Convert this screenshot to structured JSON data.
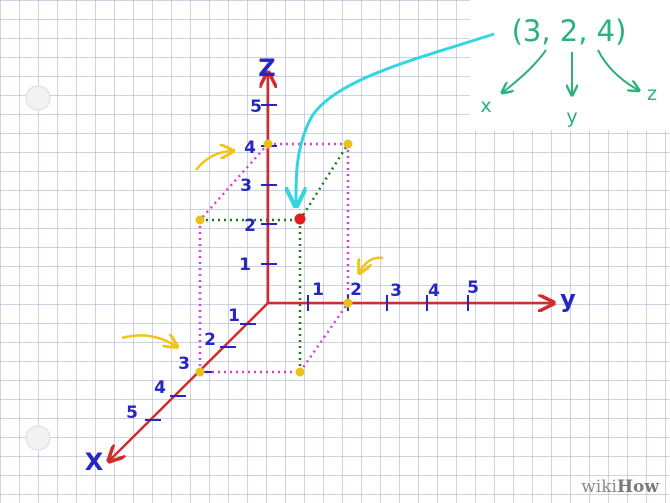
{
  "diagram": {
    "axes": {
      "z": "Z",
      "y": "y",
      "x": "X"
    },
    "z_ticks": [
      "1",
      "2",
      "3",
      "4",
      "5"
    ],
    "y_ticks": [
      "1",
      "2",
      "3",
      "4",
      "5"
    ],
    "x_ticks": [
      "1",
      "2",
      "3",
      "4",
      "5"
    ],
    "callout": {
      "coordinate": "(3, 2, 4)",
      "branch_x": "x",
      "branch_y": "y",
      "branch_z": "z"
    },
    "watermark": {
      "wiki": "wiki",
      "how": "How"
    }
  },
  "colors": {
    "grid": "#9aa8c8",
    "axis": "#d42a2a",
    "tick_label": "#2626c4",
    "box_dotted": "#d63fd6",
    "edge_dotted": "#1f7a1f",
    "point": "#e01e1e",
    "vertex": "#e8c11a",
    "callout_arrow": "#33d6e0",
    "callout_text": "#2ab27a",
    "hint_arrow": "#f0c419"
  }
}
